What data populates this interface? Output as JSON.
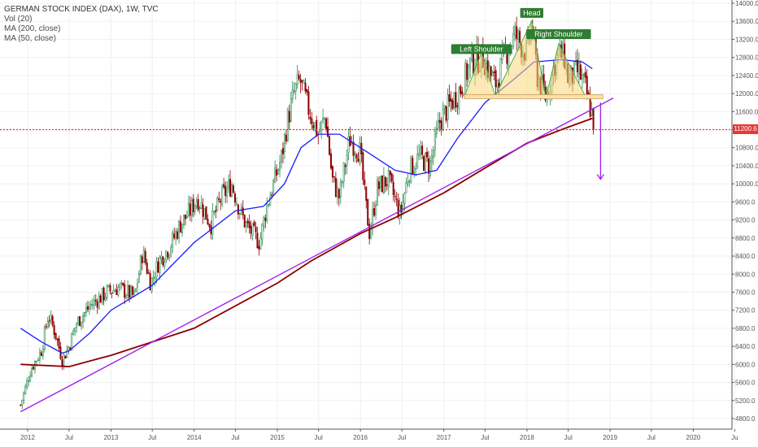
{
  "legend": {
    "title": "GERMAN STOCK INDEX (DAX), 1W, TVC",
    "vol": "Vol (20)",
    "ma200": "MA (200, close)",
    "ma50": "MA (50, close)"
  },
  "current_price_label": "11200.6",
  "colors": {
    "up": "#26a69a",
    "down": "#8b0000",
    "ma50": "#1a1aff",
    "ma200": "#8b0000",
    "trendline": "#a020f0",
    "support": "#e53935",
    "neckline_fill": "#fde0a8",
    "pattern_fill": "#fbd77a",
    "label_bg": "#2e7d32"
  },
  "chart_data": {
    "type": "candlestick",
    "title": "GERMAN STOCK INDEX (DAX), 1W, TVC",
    "x_ticks": [
      "2012",
      "Jul",
      "2013",
      "Jul",
      "2014",
      "Jul",
      "2015",
      "Jul",
      "2016",
      "Jul",
      "2017",
      "Jul",
      "2018",
      "Jul",
      "2019",
      "Jul",
      "2020",
      "Ju"
    ],
    "y_ticks": [
      4800,
      5200,
      5600,
      6000,
      6400,
      6800,
      7200,
      7600,
      8000,
      8400,
      8800,
      9200,
      9600,
      10000,
      10400,
      10800,
      11200,
      11600,
      12000,
      12400,
      12800,
      13200,
      13600,
      14000
    ],
    "ylim": [
      4500,
      14100
    ],
    "path_points": [
      [
        "2011-12-01",
        5100
      ],
      [
        "2012-01-15",
        5900
      ],
      [
        "2012-03-01",
        6300
      ],
      [
        "2012-04-01",
        7100
      ],
      [
        "2012-05-01",
        6700
      ],
      [
        "2012-06-01",
        6100
      ],
      [
        "2012-07-01",
        6400
      ],
      [
        "2012-08-01",
        6900
      ],
      [
        "2012-10-01",
        7300
      ],
      [
        "2012-12-15",
        7600
      ],
      [
        "2013-02-01",
        7700
      ],
      [
        "2013-04-15",
        7500
      ],
      [
        "2013-05-20",
        8500
      ],
      [
        "2013-06-24",
        7800
      ],
      [
        "2013-08-01",
        8300
      ],
      [
        "2013-09-15",
        8600
      ],
      [
        "2013-11-01",
        9100
      ],
      [
        "2013-12-15",
        9400
      ],
      [
        "2014-01-15",
        9700
      ],
      [
        "2014-03-15",
        9100
      ],
      [
        "2014-05-01",
        9700
      ],
      [
        "2014-06-15",
        10000
      ],
      [
        "2014-07-15",
        9500
      ],
      [
        "2014-08-15",
        9100
      ],
      [
        "2014-10-15",
        8700
      ],
      [
        "2014-11-15",
        9500
      ],
      [
        "2014-12-15",
        10000
      ],
      [
        "2015-01-20",
        10600
      ],
      [
        "2015-02-15",
        11400
      ],
      [
        "2015-03-15",
        12000
      ],
      [
        "2015-04-10",
        12300
      ],
      [
        "2015-05-15",
        11700
      ],
      [
        "2015-06-30",
        11100
      ],
      [
        "2015-08-01",
        11500
      ],
      [
        "2015-08-30",
        10100
      ],
      [
        "2015-09-30",
        9700
      ],
      [
        "2015-11-15",
        11000
      ],
      [
        "2015-12-30",
        10700
      ],
      [
        "2016-01-20",
        9700
      ],
      [
        "2016-02-10",
        8900
      ],
      [
        "2016-03-15",
        9900
      ],
      [
        "2016-05-01",
        10100
      ],
      [
        "2016-06-24",
        9300
      ],
      [
        "2016-08-01",
        10300
      ],
      [
        "2016-09-15",
        10600
      ],
      [
        "2016-11-01",
        10400
      ],
      [
        "2016-12-15",
        11400
      ],
      [
        "2017-01-20",
        11700
      ],
      [
        "2017-03-15",
        12100
      ],
      [
        "2017-05-01",
        12700
      ],
      [
        "2017-06-20",
        12800
      ],
      [
        "2017-08-15",
        12200
      ],
      [
        "2017-10-01",
        12900
      ],
      [
        "2017-11-10",
        13300
      ],
      [
        "2017-12-30",
        12900
      ],
      [
        "2018-01-22",
        13550
      ],
      [
        "2018-02-15",
        12400
      ],
      [
        "2018-03-25",
        11900
      ],
      [
        "2018-05-15",
        12900
      ],
      [
        "2018-06-15",
        12800
      ],
      [
        "2018-07-01",
        12300
      ],
      [
        "2018-08-15",
        12500
      ],
      [
        "2018-09-15",
        12100
      ],
      [
        "2018-10-15",
        11500
      ],
      [
        "2018-10-26",
        11200
      ]
    ],
    "ma50": [
      [
        "2011-12-01",
        6800
      ],
      [
        "2012-03-01",
        6500
      ],
      [
        "2012-06-01",
        6250
      ],
      [
        "2012-07-01",
        6300
      ],
      [
        "2012-10-01",
        6700
      ],
      [
        "2013-01-01",
        7200
      ],
      [
        "2013-07-01",
        7750
      ],
      [
        "2014-01-01",
        8700
      ],
      [
        "2014-07-01",
        9400
      ],
      [
        "2014-11-01",
        9500
      ],
      [
        "2015-02-01",
        10000
      ],
      [
        "2015-04-15",
        10800
      ],
      [
        "2015-07-01",
        11100
      ],
      [
        "2015-10-01",
        11100
      ],
      [
        "2016-02-01",
        10700
      ],
      [
        "2016-06-01",
        10300
      ],
      [
        "2016-09-01",
        10200
      ],
      [
        "2016-12-01",
        10300
      ],
      [
        "2017-03-01",
        11000
      ],
      [
        "2017-07-01",
        11800
      ],
      [
        "2017-11-01",
        12300
      ],
      [
        "2018-02-01",
        12700
      ],
      [
        "2018-06-01",
        12750
      ],
      [
        "2018-09-01",
        12700
      ],
      [
        "2018-10-15",
        12550
      ]
    ],
    "ma200": [
      [
        "2011-12-01",
        6000
      ],
      [
        "2012-07-01",
        5950
      ],
      [
        "2013-01-01",
        6200
      ],
      [
        "2014-01-01",
        6800
      ],
      [
        "2015-01-01",
        7800
      ],
      [
        "2015-06-01",
        8300
      ],
      [
        "2016-01-01",
        8900
      ],
      [
        "2016-06-01",
        9250
      ],
      [
        "2017-01-01",
        9800
      ],
      [
        "2017-07-01",
        10350
      ],
      [
        "2018-01-01",
        10900
      ],
      [
        "2018-06-01",
        11200
      ],
      [
        "2018-10-15",
        11450
      ]
    ],
    "trendline": {
      "from": [
        "2011-12-01",
        4950
      ],
      "to": [
        "2019-01-15",
        11900
      ]
    },
    "support_level": 11200,
    "neckline": {
      "from": [
        "2017-04-01",
        11930
      ],
      "to": [
        "2018-11-30",
        11930
      ]
    },
    "annotations": [
      {
        "text": "Left Shoulder",
        "date": "2017-06-15",
        "price": 12950
      },
      {
        "text": "Head",
        "date": "2018-01-22",
        "price": 13750
      },
      {
        "text": "Right Shoulder",
        "date": "2018-05-20",
        "price": 13280
      }
    ],
    "target_arrow": {
      "from": [
        "2018-11-20",
        11800
      ],
      "to": [
        "2018-11-20",
        10100
      ]
    }
  }
}
